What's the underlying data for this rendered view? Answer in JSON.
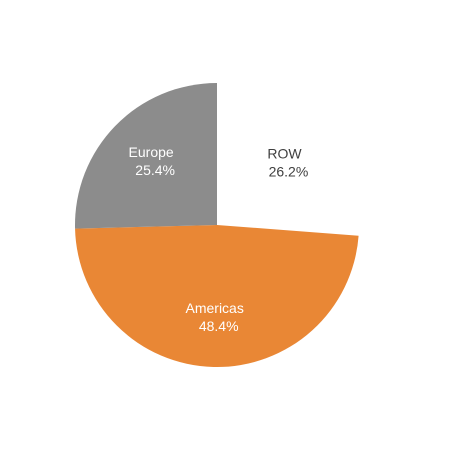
{
  "chart_data": {
    "type": "pie",
    "slices": [
      {
        "label": "ROW",
        "value": 26.2,
        "value_text": "26.2%",
        "color": "#ffffff",
        "text_color": "#404040"
      },
      {
        "label": "Americas",
        "value": 48.4,
        "value_text": "48.4%",
        "color": "#e98735",
        "text_color": "#ffffff"
      },
      {
        "label": "Europe",
        "value": 25.4,
        "value_text": "25.4%",
        "color": "#8c8c8c",
        "text_color": "#ffffff"
      }
    ],
    "start_direction": "top",
    "direction": "clockwise",
    "legend": "none"
  }
}
